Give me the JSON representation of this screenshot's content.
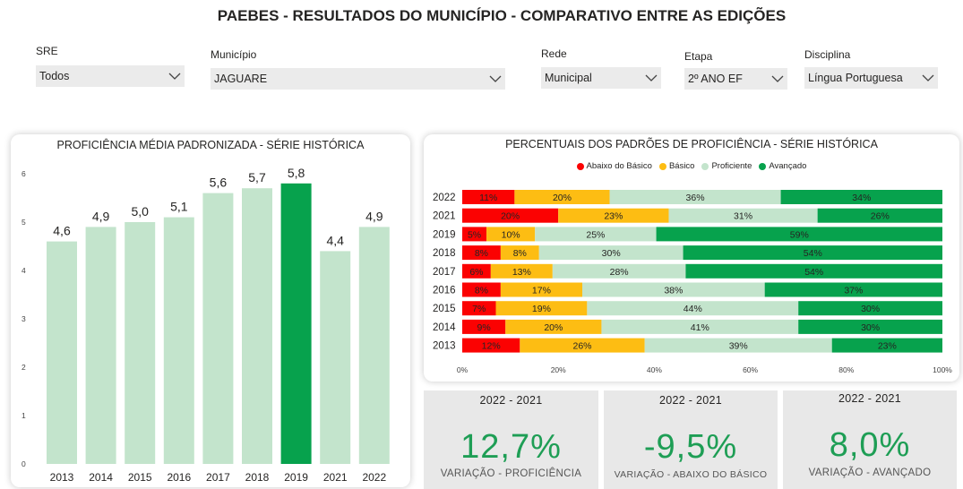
{
  "title": "PAEBES - RESULTADOS DO MUNICÍPIO - COMPARATIVO ENTRE AS EDIÇÕES",
  "colors": {
    "bar_light": "#c3e4cc",
    "bar_highlight": "#07a24d",
    "red": "#fb0202",
    "yellow": "#fdbd13",
    "light_green": "#c3e4cc",
    "green": "#07a24d",
    "kpi_green": "#1e9e55"
  },
  "filters": [
    {
      "label": "SRE",
      "value": "Todos"
    },
    {
      "label": "Município",
      "value": "JAGUARE"
    },
    {
      "label": "Rede",
      "value": "Municipal"
    },
    {
      "label": "Etapa",
      "value": "2º ANO EF"
    },
    {
      "label": "Disciplina",
      "value": "Língua Portuguesa"
    }
  ],
  "chart_data": [
    {
      "type": "bar",
      "title": "PROFICIÊNCIA MÉDIA PADRONIZADA - SÉRIE HISTÓRICA",
      "categories": [
        "2013",
        "2014",
        "2015",
        "2016",
        "2017",
        "2018",
        "2019",
        "2021",
        "2022"
      ],
      "values": [
        4.6,
        4.9,
        5.0,
        5.1,
        5.6,
        5.7,
        5.8,
        4.4,
        4.9
      ],
      "labels": [
        "4,6",
        "4,9",
        "5,0",
        "5,1",
        "5,6",
        "5,7",
        "5,8",
        "4,4",
        "4,9"
      ],
      "highlight": "2019",
      "ylim": [
        0,
        6
      ],
      "yticks": [
        "0",
        "1",
        "2",
        "3",
        "4",
        "5",
        "6"
      ],
      "grid": false
    },
    {
      "type": "bar",
      "orientation": "horizontal-stacked-100",
      "title": "PERCENTUAIS DOS PADRÕES DE PROFICIÊNCIA - SÉRIE HISTÓRICA",
      "categories": [
        "2022",
        "2021",
        "2019",
        "2018",
        "2017",
        "2016",
        "2015",
        "2014",
        "2013"
      ],
      "series": [
        {
          "name": "Abaixo do Básico",
          "values": [
            11,
            20,
            5,
            8,
            6,
            8,
            7,
            9,
            12
          ]
        },
        {
          "name": "Básico",
          "values": [
            20,
            23,
            10,
            8,
            13,
            17,
            19,
            20,
            26
          ]
        },
        {
          "name": "Proficiente",
          "values": [
            36,
            31,
            25,
            30,
            28,
            38,
            44,
            41,
            39
          ]
        },
        {
          "name": "Avançado",
          "values": [
            34,
            26,
            59,
            54,
            54,
            37,
            30,
            30,
            23
          ]
        }
      ],
      "xticks": [
        "0%",
        "20%",
        "40%",
        "60%",
        "80%",
        "100%"
      ],
      "legend": "top"
    }
  ],
  "kpis": [
    {
      "period": "2022 - 2021",
      "value": "12,7%",
      "caption": "VARIAÇÃO - PROFICIÊNCIA"
    },
    {
      "period": "2022 - 2021",
      "value": "-9,5%",
      "caption": "VARIAÇÃO - ABAIXO DO BÁSICO"
    },
    {
      "period": "2022 - 2021",
      "value": "8,0%",
      "caption": "VARIAÇÃO - AVANÇADO"
    }
  ]
}
